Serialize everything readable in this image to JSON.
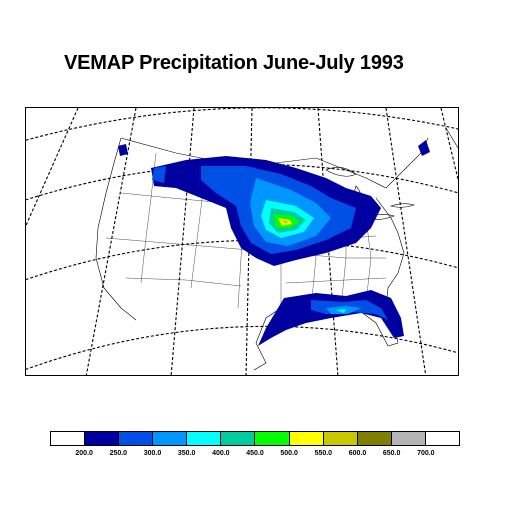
{
  "title": "VEMAP Precipitation June-July 1993",
  "legend": {
    "colors": [
      "#ffffff",
      "#0000a0",
      "#0050e6",
      "#0096ff",
      "#00ffff",
      "#00cca0",
      "#00ff00",
      "#ffff00",
      "#c8c800",
      "#808000",
      "#b4b4b4",
      "#ffffff"
    ],
    "labels": [
      "200.0",
      "250.0",
      "300.0",
      "350.0",
      "400.0",
      "450.0",
      "500.0",
      "550.0",
      "600.0",
      "650.0",
      "700.0"
    ]
  },
  "map": {
    "region": "conterminous United States",
    "variable": "precipitation",
    "period": "June-July 1993"
  }
}
